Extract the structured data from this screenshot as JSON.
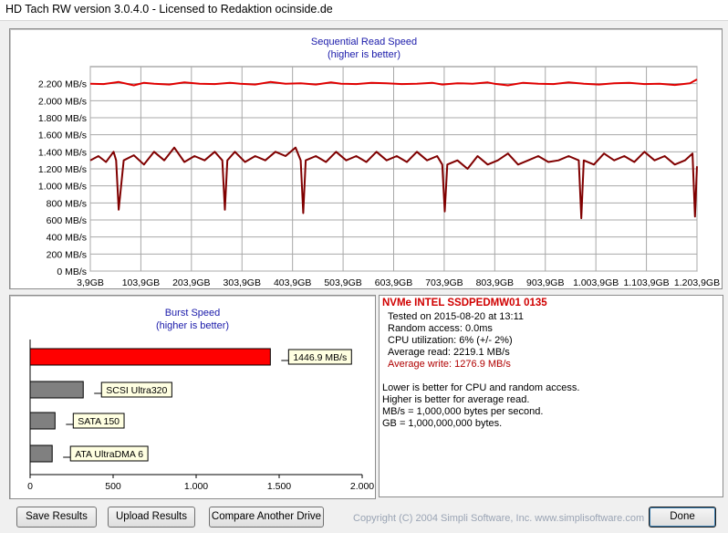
{
  "window": {
    "title": "HD Tach RW version 3.0.4.0 - Licensed to Redaktion ocinside.de"
  },
  "chart_data": [
    {
      "type": "line",
      "title": "Sequential Read Speed",
      "subtitle": "(higher is better)",
      "xlabel": "",
      "ylabel": "",
      "ylim": [
        0,
        2400
      ],
      "y_ticks": [
        "0 MB/s",
        "200 MB/s",
        "400 MB/s",
        "600 MB/s",
        "800 MB/s",
        "1.000 MB/s",
        "1.200 MB/s",
        "1.400 MB/s",
        "1.600 MB/s",
        "1.800 MB/s",
        "2.000 MB/s",
        "2.200 MB/s"
      ],
      "x_ticks": [
        "3,9GB",
        "103,9GB",
        "203,9GB",
        "303,9GB",
        "403,9GB",
        "503,9GB",
        "603,9GB",
        "703,9GB",
        "803,9GB",
        "903,9GB",
        "1.003,9GB",
        "1.103,9GB",
        "1.203,9GB"
      ],
      "xlim": [
        3.9,
        1203.9
      ],
      "grid": true,
      "series": [
        {
          "color": "#e00000",
          "x": [
            3.9,
            30,
            60,
            90,
            110,
            130,
            160,
            190,
            220,
            250,
            280,
            300,
            330,
            360,
            390,
            420,
            450,
            480,
            500,
            530,
            560,
            590,
            620,
            650,
            680,
            700,
            730,
            760,
            790,
            803,
            830,
            860,
            890,
            920,
            950,
            980,
            1010,
            1040,
            1070,
            1100,
            1130,
            1160,
            1190,
            1203.9
          ],
          "values": [
            2200,
            2195,
            2220,
            2180,
            2210,
            2200,
            2190,
            2215,
            2200,
            2195,
            2210,
            2200,
            2190,
            2220,
            2200,
            2205,
            2190,
            2215,
            2200,
            2195,
            2210,
            2205,
            2195,
            2200,
            2210,
            2190,
            2205,
            2200,
            2215,
            2200,
            2180,
            2210,
            2200,
            2195,
            2215,
            2200,
            2190,
            2205,
            2210,
            2195,
            2200,
            2185,
            2205,
            2250
          ]
        },
        {
          "color": "#800000",
          "x": [
            3.9,
            20,
            35,
            50,
            55,
            60,
            70,
            90,
            110,
            130,
            150,
            170,
            190,
            210,
            230,
            250,
            265,
            270,
            275,
            290,
            310,
            330,
            350,
            370,
            390,
            410,
            420,
            425,
            430,
            450,
            470,
            490,
            510,
            530,
            550,
            570,
            590,
            610,
            630,
            650,
            670,
            690,
            700,
            705,
            710,
            730,
            750,
            770,
            790,
            810,
            830,
            850,
            870,
            890,
            910,
            930,
            950,
            970,
            975,
            980,
            1000,
            1020,
            1040,
            1060,
            1080,
            1100,
            1120,
            1140,
            1160,
            1180,
            1195,
            1200,
            1203.9
          ],
          "values": [
            1300,
            1350,
            1280,
            1400,
            1300,
            720,
            1300,
            1360,
            1250,
            1400,
            1300,
            1450,
            1280,
            1350,
            1300,
            1400,
            1300,
            720,
            1300,
            1400,
            1280,
            1350,
            1300,
            1400,
            1350,
            1450,
            1300,
            680,
            1300,
            1350,
            1280,
            1400,
            1300,
            1350,
            1280,
            1400,
            1300,
            1350,
            1280,
            1400,
            1300,
            1350,
            1250,
            700,
            1250,
            1300,
            1200,
            1350,
            1250,
            1300,
            1380,
            1250,
            1300,
            1350,
            1280,
            1300,
            1350,
            1300,
            620,
            1300,
            1250,
            1380,
            1300,
            1350,
            1280,
            1400,
            1300,
            1350,
            1250,
            1300,
            1380,
            640,
            1230
          ]
        }
      ]
    },
    {
      "type": "bar",
      "orientation": "horizontal",
      "title": "Burst Speed",
      "subtitle": "(higher is better)",
      "xlim": [
        0,
        2000
      ],
      "x_ticks": [
        "0",
        "500",
        "1.000",
        "1.500",
        "2.000"
      ],
      "categories": [
        "1446.9 MB/s",
        "SCSI Ultra320",
        "SATA 150",
        "ATA UltraDMA 6"
      ],
      "values": [
        1446.9,
        320,
        150,
        133
      ],
      "colors": [
        "#ff0000",
        "#808080",
        "#808080",
        "#808080"
      ]
    }
  ],
  "info": {
    "drive": "NVMe INTEL SSDPEDMW01 0135",
    "tested": "Tested on 2015-08-20 at 13:11",
    "random_access": "Random access: 0.0ms",
    "cpu": "CPU utilization: 6% (+/- 2%)",
    "avg_read": "Average read: 2219.1 MB/s",
    "avg_write": "Average write: 1276.9 MB/s",
    "note1": "Lower is better for CPU and random access.",
    "note2": "Higher is better for average read.",
    "note3": "MB/s = 1,000,000 bytes per second.",
    "note4": "GB = 1,000,000,000 bytes."
  },
  "buttons": {
    "save": "Save Results",
    "upload": "Upload Results",
    "compare": "Compare Another Drive",
    "done": "Done"
  },
  "copyright": "Copyright (C) 2004 Simpli Software, Inc. www.simplisoftware.com"
}
